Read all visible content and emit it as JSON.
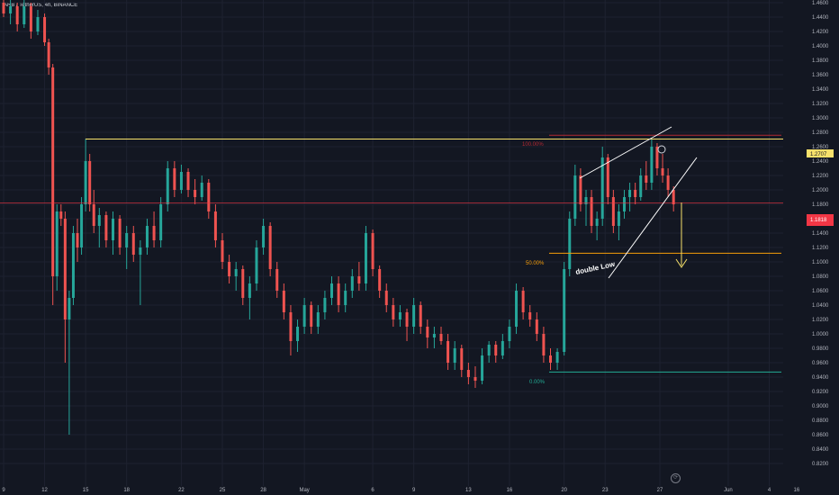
{
  "header": {
    "symbol_line": "ARB / TetherUS, 4h, BINANCE"
  },
  "chart_data": {
    "type": "candlestick",
    "interval": "4h",
    "exchange": "BINANCE",
    "price_axis": {
      "min": 0.82,
      "max": 1.46,
      "ticks": [
        "1.4600",
        "1.4400",
        "1.4200",
        "1.4000",
        "1.3800",
        "1.3600",
        "1.3400",
        "1.3200",
        "1.3000",
        "1.2800",
        "1.2600",
        "1.2400",
        "1.2200",
        "1.2000",
        "1.1800",
        "1.1600",
        "1.1400",
        "1.1200",
        "1.1000",
        "1.0800",
        "1.0600",
        "1.0400",
        "1.0200",
        "1.0000",
        "0.9800",
        "0.9600",
        "0.9400",
        "0.9200",
        "0.9000",
        "0.8800",
        "0.8600",
        "0.8400",
        "0.8200"
      ]
    },
    "time_axis": {
      "labels": [
        {
          "label": "9",
          "day": 9
        },
        {
          "label": "12",
          "day": 12
        },
        {
          "label": "15",
          "day": 15
        },
        {
          "label": "18",
          "day": 18
        },
        {
          "label": "22",
          "day": 22
        },
        {
          "label": "25",
          "day": 25
        },
        {
          "label": "28",
          "day": 28
        },
        {
          "label": "May",
          "day": 31
        },
        {
          "label": "6",
          "day": 36
        },
        {
          "label": "9",
          "day": 39
        },
        {
          "label": "13",
          "day": 43
        },
        {
          "label": "16",
          "day": 46
        },
        {
          "label": "20",
          "day": 50
        },
        {
          "label": "23",
          "day": 53
        },
        {
          "label": "27",
          "day": 57
        },
        {
          "label": "Jun",
          "day": 62
        },
        {
          "label": "4",
          "day": 65
        },
        {
          "label": "16",
          "day": 67
        }
      ]
    },
    "candles": [
      {
        "day": 9.0,
        "o": 1.46,
        "h": 1.47,
        "l": 1.44,
        "c": 1.445
      },
      {
        "day": 9.5,
        "o": 1.445,
        "h": 1.47,
        "l": 1.43,
        "c": 1.455
      },
      {
        "day": 10.0,
        "o": 1.455,
        "h": 1.46,
        "l": 1.42,
        "c": 1.43
      },
      {
        "day": 10.5,
        "o": 1.43,
        "h": 1.465,
        "l": 1.425,
        "c": 1.455
      },
      {
        "day": 11.0,
        "o": 1.455,
        "h": 1.46,
        "l": 1.41,
        "c": 1.42
      },
      {
        "day": 11.5,
        "o": 1.42,
        "h": 1.45,
        "l": 1.415,
        "c": 1.44
      },
      {
        "day": 12.0,
        "o": 1.44,
        "h": 1.445,
        "l": 1.4,
        "c": 1.405
      },
      {
        "day": 12.3,
        "o": 1.405,
        "h": 1.41,
        "l": 1.36,
        "c": 1.37
      },
      {
        "day": 12.6,
        "o": 1.37,
        "h": 1.375,
        "l": 1.04,
        "c": 1.08
      },
      {
        "day": 12.9,
        "o": 1.08,
        "h": 1.18,
        "l": 1.06,
        "c": 1.17
      },
      {
        "day": 13.2,
        "o": 1.17,
        "h": 1.18,
        "l": 1.15,
        "c": 1.16
      },
      {
        "day": 13.5,
        "o": 1.16,
        "h": 1.17,
        "l": 0.96,
        "c": 1.02
      },
      {
        "day": 13.8,
        "o": 1.02,
        "h": 1.06,
        "l": 0.86,
        "c": 1.05
      },
      {
        "day": 14.1,
        "o": 1.05,
        "h": 1.15,
        "l": 1.04,
        "c": 1.14
      },
      {
        "day": 14.4,
        "o": 1.14,
        "h": 1.16,
        "l": 1.1,
        "c": 1.12
      },
      {
        "day": 14.7,
        "o": 1.12,
        "h": 1.19,
        "l": 1.11,
        "c": 1.18
      },
      {
        "day": 15.0,
        "o": 1.18,
        "h": 1.271,
        "l": 1.17,
        "c": 1.24
      },
      {
        "day": 15.3,
        "o": 1.24,
        "h": 1.25,
        "l": 1.17,
        "c": 1.18
      },
      {
        "day": 15.6,
        "o": 1.18,
        "h": 1.2,
        "l": 1.14,
        "c": 1.15
      },
      {
        "day": 16.0,
        "o": 1.15,
        "h": 1.175,
        "l": 1.12,
        "c": 1.165
      },
      {
        "day": 16.5,
        "o": 1.165,
        "h": 1.17,
        "l": 1.12,
        "c": 1.13
      },
      {
        "day": 17.0,
        "o": 1.13,
        "h": 1.17,
        "l": 1.11,
        "c": 1.16
      },
      {
        "day": 17.5,
        "o": 1.16,
        "h": 1.165,
        "l": 1.11,
        "c": 1.12
      },
      {
        "day": 18.0,
        "o": 1.12,
        "h": 1.15,
        "l": 1.09,
        "c": 1.14
      },
      {
        "day": 18.5,
        "o": 1.14,
        "h": 1.15,
        "l": 1.1,
        "c": 1.11
      },
      {
        "day": 19.0,
        "o": 1.11,
        "h": 1.13,
        "l": 1.04,
        "c": 1.12
      },
      {
        "day": 19.5,
        "o": 1.12,
        "h": 1.16,
        "l": 1.11,
        "c": 1.15
      },
      {
        "day": 20.0,
        "o": 1.15,
        "h": 1.17,
        "l": 1.12,
        "c": 1.13
      },
      {
        "day": 20.5,
        "o": 1.13,
        "h": 1.19,
        "l": 1.12,
        "c": 1.18
      },
      {
        "day": 21.0,
        "o": 1.18,
        "h": 1.24,
        "l": 1.17,
        "c": 1.23
      },
      {
        "day": 21.5,
        "o": 1.23,
        "h": 1.24,
        "l": 1.19,
        "c": 1.2
      },
      {
        "day": 22.0,
        "o": 1.2,
        "h": 1.235,
        "l": 1.195,
        "c": 1.225
      },
      {
        "day": 22.5,
        "o": 1.225,
        "h": 1.23,
        "l": 1.19,
        "c": 1.2
      },
      {
        "day": 23.0,
        "o": 1.2,
        "h": 1.215,
        "l": 1.18,
        "c": 1.19
      },
      {
        "day": 23.5,
        "o": 1.19,
        "h": 1.22,
        "l": 1.185,
        "c": 1.21
      },
      {
        "day": 24.0,
        "o": 1.21,
        "h": 1.215,
        "l": 1.16,
        "c": 1.17
      },
      {
        "day": 24.5,
        "o": 1.17,
        "h": 1.18,
        "l": 1.12,
        "c": 1.13
      },
      {
        "day": 25.0,
        "o": 1.13,
        "h": 1.14,
        "l": 1.09,
        "c": 1.1
      },
      {
        "day": 25.5,
        "o": 1.1,
        "h": 1.11,
        "l": 1.07,
        "c": 1.08
      },
      {
        "day": 26.0,
        "o": 1.08,
        "h": 1.1,
        "l": 1.06,
        "c": 1.09
      },
      {
        "day": 26.5,
        "o": 1.09,
        "h": 1.095,
        "l": 1.04,
        "c": 1.05
      },
      {
        "day": 27.0,
        "o": 1.05,
        "h": 1.08,
        "l": 1.02,
        "c": 1.07
      },
      {
        "day": 27.5,
        "o": 1.07,
        "h": 1.13,
        "l": 1.06,
        "c": 1.12
      },
      {
        "day": 28.0,
        "o": 1.12,
        "h": 1.16,
        "l": 1.11,
        "c": 1.15
      },
      {
        "day": 28.5,
        "o": 1.15,
        "h": 1.155,
        "l": 1.08,
        "c": 1.09
      },
      {
        "day": 29.0,
        "o": 1.09,
        "h": 1.1,
        "l": 1.05,
        "c": 1.06
      },
      {
        "day": 29.5,
        "o": 1.06,
        "h": 1.07,
        "l": 1.02,
        "c": 1.03
      },
      {
        "day": 30.0,
        "o": 1.03,
        "h": 1.04,
        "l": 0.97,
        "c": 0.99
      },
      {
        "day": 30.5,
        "o": 0.99,
        "h": 1.02,
        "l": 0.975,
        "c": 1.01
      },
      {
        "day": 31.0,
        "o": 1.01,
        "h": 1.05,
        "l": 1.0,
        "c": 1.04
      },
      {
        "day": 31.5,
        "o": 1.04,
        "h": 1.045,
        "l": 1.0,
        "c": 1.01
      },
      {
        "day": 32.0,
        "o": 1.01,
        "h": 1.04,
        "l": 1.0,
        "c": 1.03
      },
      {
        "day": 32.5,
        "o": 1.03,
        "h": 1.06,
        "l": 1.02,
        "c": 1.05
      },
      {
        "day": 33.0,
        "o": 1.05,
        "h": 1.08,
        "l": 1.04,
        "c": 1.07
      },
      {
        "day": 33.5,
        "o": 1.07,
        "h": 1.08,
        "l": 1.03,
        "c": 1.04
      },
      {
        "day": 34.0,
        "o": 1.04,
        "h": 1.07,
        "l": 1.03,
        "c": 1.06
      },
      {
        "day": 34.5,
        "o": 1.06,
        "h": 1.09,
        "l": 1.05,
        "c": 1.08
      },
      {
        "day": 35.0,
        "o": 1.08,
        "h": 1.1,
        "l": 1.06,
        "c": 1.07
      },
      {
        "day": 35.5,
        "o": 1.07,
        "h": 1.15,
        "l": 1.06,
        "c": 1.14
      },
      {
        "day": 36.0,
        "o": 1.14,
        "h": 1.145,
        "l": 1.08,
        "c": 1.09
      },
      {
        "day": 36.5,
        "o": 1.09,
        "h": 1.095,
        "l": 1.05,
        "c": 1.06
      },
      {
        "day": 37.0,
        "o": 1.06,
        "h": 1.07,
        "l": 1.03,
        "c": 1.04
      },
      {
        "day": 37.5,
        "o": 1.04,
        "h": 1.05,
        "l": 1.01,
        "c": 1.02
      },
      {
        "day": 38.0,
        "o": 1.02,
        "h": 1.04,
        "l": 1.01,
        "c": 1.03
      },
      {
        "day": 38.5,
        "o": 1.03,
        "h": 1.035,
        "l": 0.99,
        "c": 1.01
      },
      {
        "day": 39.0,
        "o": 1.01,
        "h": 1.05,
        "l": 1.0,
        "c": 1.04
      },
      {
        "day": 39.5,
        "o": 1.04,
        "h": 1.045,
        "l": 1.0,
        "c": 1.01
      },
      {
        "day": 40.0,
        "o": 1.01,
        "h": 1.02,
        "l": 0.98,
        "c": 0.995
      },
      {
        "day": 40.5,
        "o": 0.995,
        "h": 1.01,
        "l": 0.98,
        "c": 1.0
      },
      {
        "day": 41.0,
        "o": 1.0,
        "h": 1.01,
        "l": 0.985,
        "c": 0.99
      },
      {
        "day": 41.5,
        "o": 0.99,
        "h": 1.0,
        "l": 0.95,
        "c": 0.96
      },
      {
        "day": 42.0,
        "o": 0.96,
        "h": 0.99,
        "l": 0.95,
        "c": 0.98
      },
      {
        "day": 42.5,
        "o": 0.98,
        "h": 0.985,
        "l": 0.94,
        "c": 0.95
      },
      {
        "day": 43.0,
        "o": 0.95,
        "h": 0.96,
        "l": 0.93,
        "c": 0.94
      },
      {
        "day": 43.5,
        "o": 0.94,
        "h": 0.955,
        "l": 0.925,
        "c": 0.935
      },
      {
        "day": 44.0,
        "o": 0.935,
        "h": 0.98,
        "l": 0.93,
        "c": 0.97
      },
      {
        "day": 44.5,
        "o": 0.97,
        "h": 0.99,
        "l": 0.96,
        "c": 0.985
      },
      {
        "day": 45.0,
        "o": 0.985,
        "h": 0.99,
        "l": 0.96,
        "c": 0.97
      },
      {
        "day": 45.5,
        "o": 0.97,
        "h": 1.0,
        "l": 0.965,
        "c": 0.99
      },
      {
        "day": 46.0,
        "o": 0.99,
        "h": 1.02,
        "l": 0.98,
        "c": 1.01
      },
      {
        "day": 46.5,
        "o": 1.01,
        "h": 1.07,
        "l": 1.0,
        "c": 1.06
      },
      {
        "day": 47.0,
        "o": 1.06,
        "h": 1.065,
        "l": 1.02,
        "c": 1.03
      },
      {
        "day": 47.5,
        "o": 1.03,
        "h": 1.04,
        "l": 1.01,
        "c": 1.02
      },
      {
        "day": 48.0,
        "o": 1.02,
        "h": 1.03,
        "l": 0.99,
        "c": 1.0
      },
      {
        "day": 48.5,
        "o": 1.0,
        "h": 1.01,
        "l": 0.96,
        "c": 0.97
      },
      {
        "day": 49.0,
        "o": 0.97,
        "h": 0.98,
        "l": 0.95,
        "c": 0.96
      },
      {
        "day": 49.5,
        "o": 0.96,
        "h": 0.98,
        "l": 0.95,
        "c": 0.975
      },
      {
        "day": 50.0,
        "o": 0.975,
        "h": 1.1,
        "l": 0.97,
        "c": 1.09
      },
      {
        "day": 50.4,
        "o": 1.09,
        "h": 1.17,
        "l": 1.08,
        "c": 1.16
      },
      {
        "day": 50.8,
        "o": 1.16,
        "h": 1.235,
        "l": 1.15,
        "c": 1.22
      },
      {
        "day": 51.2,
        "o": 1.22,
        "h": 1.23,
        "l": 1.17,
        "c": 1.18
      },
      {
        "day": 51.6,
        "o": 1.18,
        "h": 1.2,
        "l": 1.15,
        "c": 1.19
      },
      {
        "day": 52.0,
        "o": 1.19,
        "h": 1.2,
        "l": 1.14,
        "c": 1.15
      },
      {
        "day": 52.4,
        "o": 1.15,
        "h": 1.17,
        "l": 1.13,
        "c": 1.16
      },
      {
        "day": 52.8,
        "o": 1.16,
        "h": 1.26,
        "l": 1.15,
        "c": 1.245
      },
      {
        "day": 53.2,
        "o": 1.245,
        "h": 1.25,
        "l": 1.18,
        "c": 1.19
      },
      {
        "day": 53.6,
        "o": 1.19,
        "h": 1.2,
        "l": 1.14,
        "c": 1.15
      },
      {
        "day": 54.0,
        "o": 1.15,
        "h": 1.18,
        "l": 1.13,
        "c": 1.17
      },
      {
        "day": 54.4,
        "o": 1.17,
        "h": 1.2,
        "l": 1.16,
        "c": 1.19
      },
      {
        "day": 54.8,
        "o": 1.19,
        "h": 1.21,
        "l": 1.17,
        "c": 1.2
      },
      {
        "day": 55.2,
        "o": 1.2,
        "h": 1.21,
        "l": 1.18,
        "c": 1.19
      },
      {
        "day": 55.6,
        "o": 1.19,
        "h": 1.23,
        "l": 1.185,
        "c": 1.22
      },
      {
        "day": 56.0,
        "o": 1.22,
        "h": 1.24,
        "l": 1.2,
        "c": 1.21
      },
      {
        "day": 56.4,
        "o": 1.21,
        "h": 1.27,
        "l": 1.2,
        "c": 1.26
      },
      {
        "day": 56.8,
        "o": 1.26,
        "h": 1.265,
        "l": 1.22,
        "c": 1.23
      },
      {
        "day": 57.2,
        "o": 1.23,
        "h": 1.25,
        "l": 1.21,
        "c": 1.22
      },
      {
        "day": 57.6,
        "o": 1.22,
        "h": 1.23,
        "l": 1.19,
        "c": 1.2
      },
      {
        "day": 58.0,
        "o": 1.2,
        "h": 1.205,
        "l": 1.17,
        "c": 1.18
      }
    ],
    "horizontal_lines": [
      {
        "name": "resistance",
        "price": 1.2707,
        "color": "#f7e16b"
      },
      {
        "name": "current-price",
        "price": 1.1818,
        "color": "#f23645"
      },
      {
        "name": "fib-100",
        "price": 1.276,
        "color": "#b22833"
      },
      {
        "name": "fib-50",
        "price": 1.112,
        "color": "#f59d0a"
      },
      {
        "name": "fib-0",
        "price": 0.947,
        "color": "#22ab94"
      }
    ],
    "annotations": {
      "fib_100_label": "100.00%",
      "fib_50_label": "50.00%",
      "fib_0_label": "0.00%",
      "pattern_label": "double Low",
      "resistance_badge": "1.2707",
      "price_badge": "1.1818"
    },
    "colors": {
      "up": "#26a69a",
      "down": "#ef5350",
      "background": "#131722",
      "grid": "#1e2230",
      "axis_text": "#b2b5be",
      "drawing": "#ffffff"
    }
  }
}
